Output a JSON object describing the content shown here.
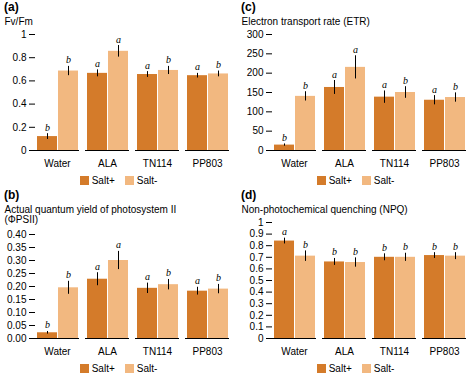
{
  "chart_data": [
    {
      "type": "bar",
      "title": "(a)",
      "ylabel": "Fv/Fm",
      "categories": [
        "Water",
        "ALA",
        "TN114",
        "PP803"
      ],
      "series": [
        {
          "name": "Salt+",
          "color": "#D47B2A",
          "values": [
            0.12,
            0.665,
            0.655,
            0.645
          ],
          "errors": [
            0.025,
            0.03,
            0.025,
            0.02
          ],
          "annotations": [
            "b",
            "a",
            "a",
            "a"
          ]
        },
        {
          "name": "Salt-",
          "color": "#F2B880",
          "values": [
            0.685,
            0.855,
            0.69,
            0.66
          ],
          "errors": [
            0.04,
            0.05,
            0.035,
            0.025
          ],
          "annotations": [
            "b",
            "a",
            "b",
            "b"
          ]
        }
      ],
      "ylim": [
        0,
        1.0
      ],
      "yticks": [
        0,
        0.2,
        0.4,
        0.6,
        0.8,
        1
      ],
      "grid": false,
      "legend": "lower center"
    },
    {
      "type": "bar",
      "title": "(c)",
      "ylabel": "Electron transport rate (ETR)",
      "categories": [
        "Water",
        "ALA",
        "TN114",
        "PP803"
      ],
      "series": [
        {
          "name": "Salt+",
          "color": "#D47B2A",
          "values": [
            14,
            163,
            138,
            130
          ],
          "errors": [
            3,
            18,
            16,
            12
          ],
          "annotations": [
            "b",
            "a",
            "a",
            "a"
          ]
        },
        {
          "name": "Salt-",
          "color": "#F2B880",
          "values": [
            140,
            215,
            150,
            137
          ],
          "errors": [
            12,
            30,
            15,
            12
          ],
          "annotations": [
            "b",
            "a",
            "b",
            "b"
          ]
        }
      ],
      "ylim": [
        0,
        300
      ],
      "yticks": [
        0,
        50,
        100,
        150,
        200,
        250,
        300
      ],
      "grid": false,
      "legend": "lower center"
    },
    {
      "type": "bar",
      "title": "(b)",
      "ylabel": "Actual quantum yield of photosystem II\n(ΦPSII)",
      "categories": [
        "Water",
        "ALA",
        "TN114",
        "PP803"
      ],
      "series": [
        {
          "name": "Salt+",
          "color": "#D47B2A",
          "values": [
            0.022,
            0.228,
            0.193,
            0.182
          ],
          "errors": [
            0.005,
            0.025,
            0.02,
            0.015
          ],
          "annotations": [
            "b",
            "a",
            "a",
            "a"
          ]
        },
        {
          "name": "Salt-",
          "color": "#F2B880",
          "values": [
            0.195,
            0.3,
            0.207,
            0.19
          ],
          "errors": [
            0.025,
            0.035,
            0.02,
            0.018
          ],
          "annotations": [
            "b",
            "a",
            "b",
            "b"
          ]
        }
      ],
      "ylim": [
        0,
        0.4
      ],
      "yticks": [
        {
          "value": 0,
          "label": "0.00"
        },
        {
          "value": 0.05,
          "label": "0.05"
        },
        {
          "value": 0.1,
          "label": "0.10"
        },
        {
          "value": 0.15,
          "label": "0.15"
        },
        {
          "value": 0.2,
          "label": "0.20"
        },
        {
          "value": 0.25,
          "label": "0.25"
        },
        {
          "value": 0.3,
          "label": "0.30"
        },
        {
          "value": 0.35,
          "label": "0.35"
        },
        {
          "value": 0.4,
          "label": "0.40"
        }
      ],
      "grid": false,
      "legend": "lower center"
    },
    {
      "type": "bar",
      "title": "(d)",
      "ylabel": "Non-photochemical quenching (NPQ)",
      "categories": [
        "Water",
        "ALA",
        "TN114",
        "PP803"
      ],
      "series": [
        {
          "name": "Salt+",
          "color": "#D47B2A",
          "values": [
            0.84,
            0.66,
            0.7,
            0.715
          ],
          "errors": [
            0.025,
            0.03,
            0.03,
            0.025
          ],
          "annotations": [
            "a",
            "b",
            "b",
            "b"
          ]
        },
        {
          "name": "Salt-",
          "color": "#F2B880",
          "values": [
            0.71,
            0.655,
            0.7,
            0.71
          ],
          "errors": [
            0.045,
            0.04,
            0.035,
            0.03
          ],
          "annotations": [
            "b",
            "b",
            "b",
            "b"
          ]
        }
      ],
      "ylim": [
        0,
        1.0
      ],
      "yticks": [
        0,
        0.1,
        0.2,
        0.3,
        0.4,
        0.5,
        0.6,
        0.7,
        0.8,
        0.9,
        1
      ],
      "grid": false,
      "legend": "lower center"
    }
  ]
}
